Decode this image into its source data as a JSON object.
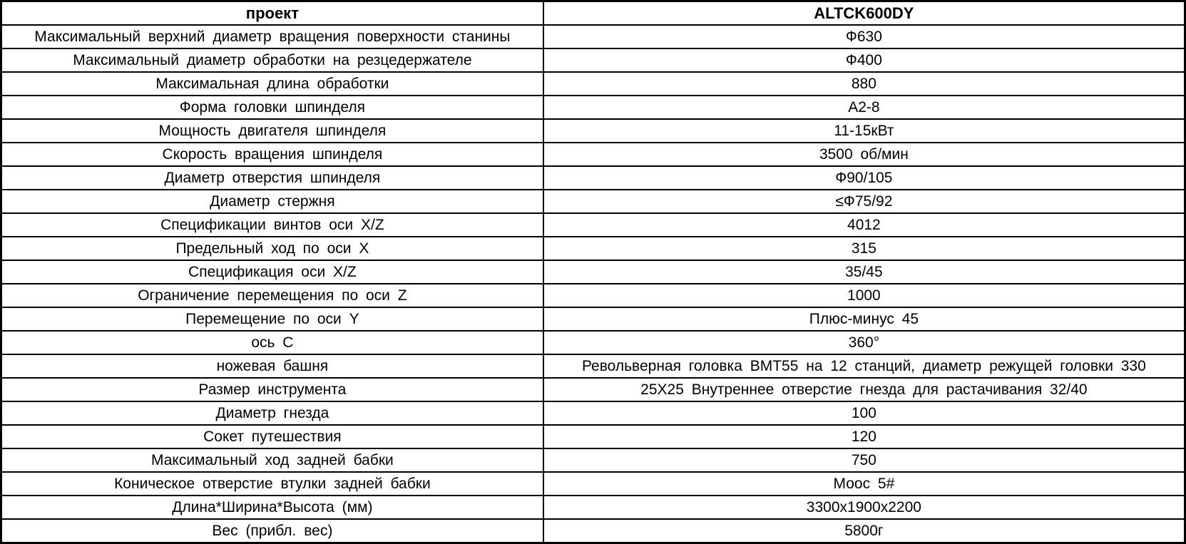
{
  "table": {
    "header": {
      "label_col": "проект",
      "value_col": "ALTCK600DY"
    },
    "rows": [
      {
        "label": "Максимальный верхний диаметр вращения поверхности станины",
        "value": "Ф630"
      },
      {
        "label": "Максимальный диаметр обработки на резцедержателе",
        "value": "Ф400"
      },
      {
        "label": "Максимальная длина обработки",
        "value": "880"
      },
      {
        "label": "Форма головки шпинделя",
        "value": "A2-8"
      },
      {
        "label": "Мощность двигателя шпинделя",
        "value": "11-15кВт"
      },
      {
        "label": "Скорость вращения шпинделя",
        "value": "3500 об/мин"
      },
      {
        "label": "Диаметр отверстия шпинделя",
        "value": "Ф90/105"
      },
      {
        "label": "Диаметр стержня",
        "value": "≤Ф75/92"
      },
      {
        "label": "Спецификации винтов оси X/Z",
        "value": "4012"
      },
      {
        "label": "Предельный ход по оси X",
        "value": "315"
      },
      {
        "label": "Спецификация оси X/Z",
        "value": "35/45"
      },
      {
        "label": "Ограничение перемещения по оси Z",
        "value": "1000"
      },
      {
        "label": "Перемещение по оси Y",
        "value": "Плюс-минус 45"
      },
      {
        "label": "ось C",
        "value": "360°"
      },
      {
        "label": "ножевая башня",
        "value": "Револьверная головка BMT55 на 12 станций, диаметр режущей головки 330"
      },
      {
        "label": "Размер инструмента",
        "value": "25X25 Внутреннее отверстие гнезда для растачивания 32/40"
      },
      {
        "label": "Диаметр гнезда",
        "value": "100"
      },
      {
        "label": "Сокет путешествия",
        "value": "120"
      },
      {
        "label": "Максимальный ход задней бабки",
        "value": "750"
      },
      {
        "label": "Коническое отверстие втулки задней бабки",
        "value": "Моос 5#"
      },
      {
        "label": "Длина*Ширина*Высота (мм)",
        "value": "3300х1900х2200"
      },
      {
        "label": "Вес (прибл. вес)",
        "value": "5800г"
      }
    ]
  }
}
